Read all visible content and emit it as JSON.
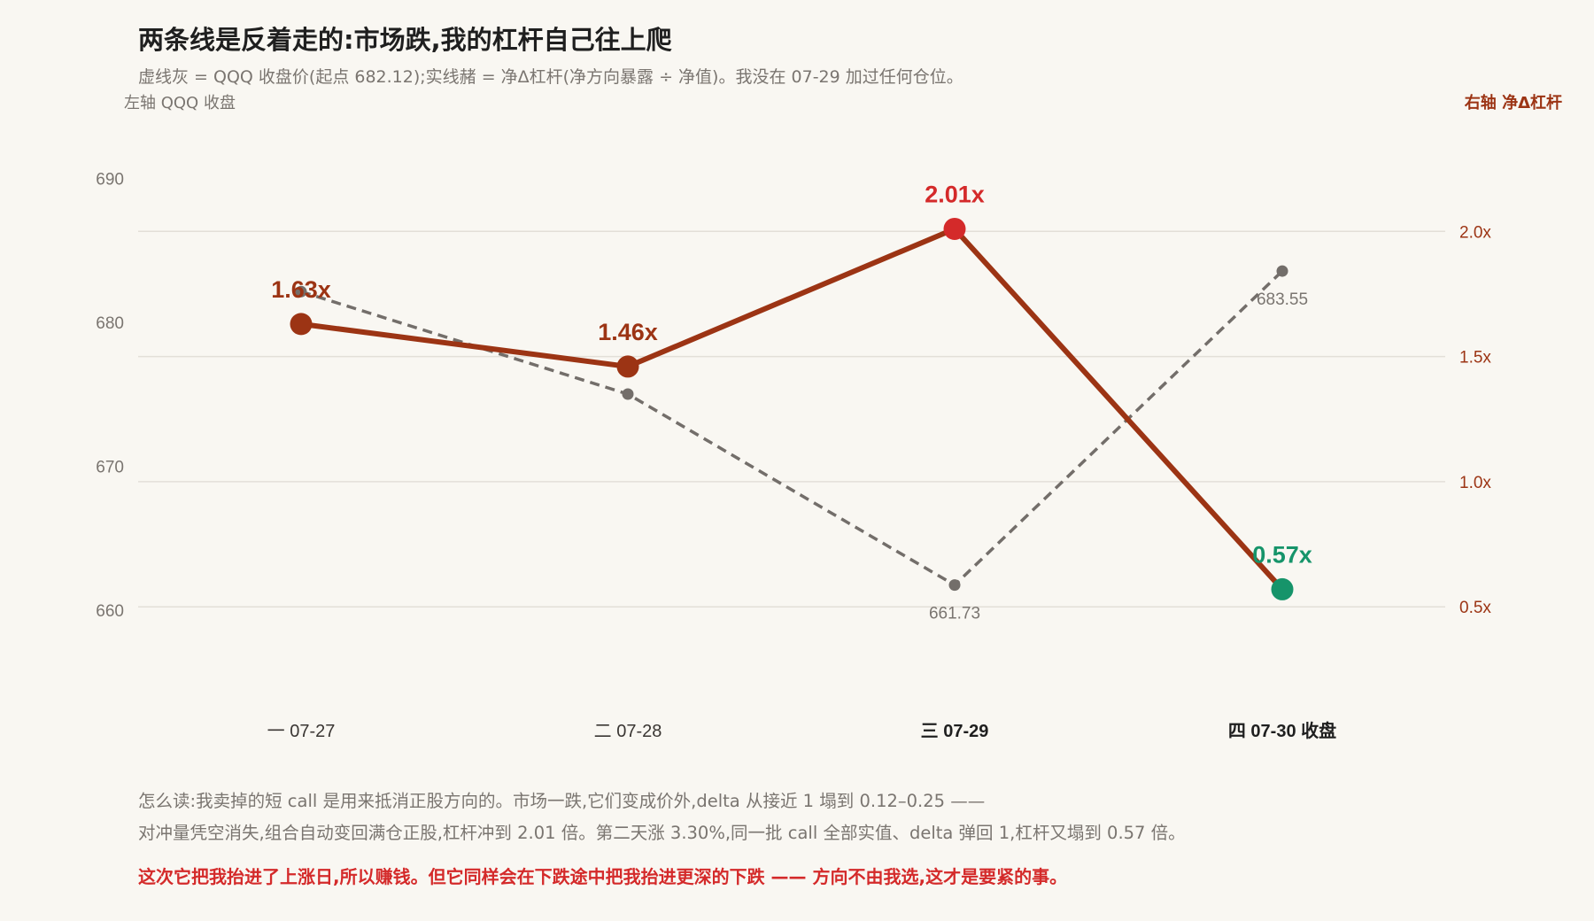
{
  "header": {
    "title": "两条线是反着走的:市场跌,我的杠杆自己往上爬",
    "subtitle": "虚线灰 = QQQ 收盘价(起点 682.12);实线赭 = 净Δ杠杆(净方向暴露 ÷ 净值)。我没在 07-29 加过任何仓位。",
    "left_axis_note": "左轴 QQQ 收盘",
    "right_axis_note": "右轴 净Δ杠杆"
  },
  "chart_data": {
    "type": "line",
    "categories": [
      "一 07-27",
      "二 07-28",
      "三 07-29",
      "四 07-30 收盘"
    ],
    "bold_categories": [
      false,
      false,
      true,
      true
    ],
    "left_axis": {
      "ylim": [
        655,
        695
      ],
      "ticks": [
        660,
        670,
        680,
        690
      ],
      "tick_labels": [
        "660",
        "670",
        "680",
        "690"
      ]
    },
    "right_axis": {
      "ylim": [
        0.2,
        2.5
      ],
      "ticks": [
        0.5,
        1.0,
        1.5,
        2.0
      ],
      "tick_labels": [
        "0.5x",
        "1.0x",
        "1.5x",
        "2.0x"
      ]
    },
    "grid": true,
    "series": [
      {
        "name": "QQQ 收盘价",
        "axis": "left",
        "style": "dashed",
        "color": "#736e6a",
        "values": [
          682.12,
          675.0,
          661.73,
          683.55
        ],
        "point_labels": [
          "",
          "",
          "661.73",
          "683.55"
        ],
        "label_positions": [
          "",
          "",
          "below",
          "below"
        ]
      },
      {
        "name": "净Δ杠杆",
        "axis": "right",
        "style": "solid",
        "color": "#9c3414",
        "values": [
          1.63,
          1.46,
          2.01,
          0.57
        ],
        "point_labels": [
          "1.63x",
          "1.46x",
          "2.01x",
          "0.57x"
        ],
        "point_colors": [
          "#9c3414",
          "#9c3414",
          "#d42a2a",
          "#16946a"
        ]
      }
    ]
  },
  "footer": {
    "line1": "怎么读:我卖掉的短 call 是用来抵消正股方向的。市场一跌,它们变成价外,delta 从接近 1 塌到 0.12–0.25 ——",
    "line2": "对冲量凭空消失,组合自动变回满仓正股,杠杆冲到 2.01 倍。第二天涨 3.30%,同一批 call 全部实值、delta 弹回 1,杠杆又塌到 0.57 倍。",
    "line3": "这次它把我抬进了上涨日,所以赚钱。但它同样会在下跌途中把我抬进更深的下跌 —— 方向不由我选,这才是要紧的事。"
  }
}
